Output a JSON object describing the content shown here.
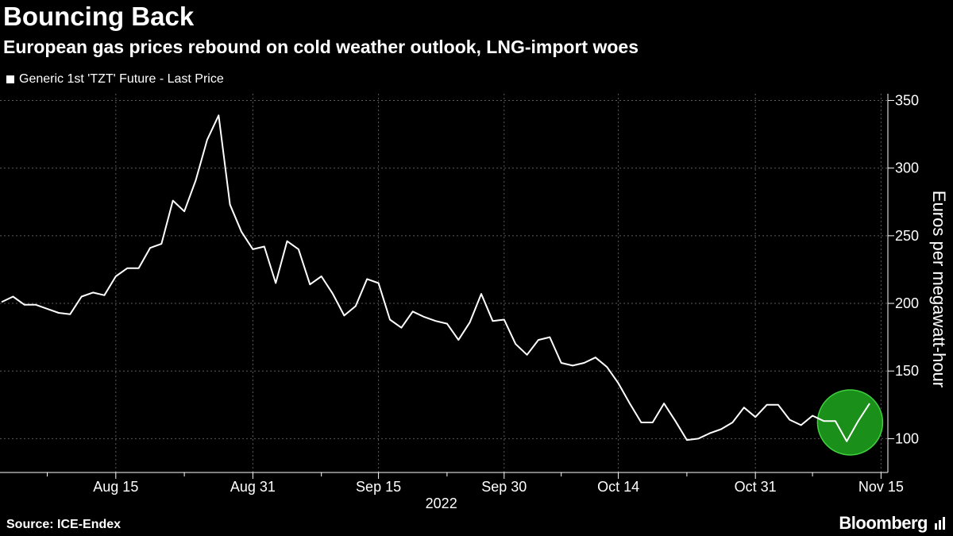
{
  "header": {
    "title": "Bouncing Back",
    "subtitle": "European gas prices rebound on cold weather outlook, LNG-import woes"
  },
  "legend": {
    "label": "Generic 1st 'TZT' Future - Last Price"
  },
  "footer": {
    "source": "Source: ICE-Endex",
    "brand": "Bloomberg"
  },
  "colors": {
    "background": "#000000",
    "line": "#ffffff",
    "grid": "#5a5a5a",
    "highlight": "#1a8f1a",
    "highlight_edge": "#3fd13f"
  },
  "chart_data": {
    "type": "line",
    "title": "Bouncing Back",
    "ylabel": "Euros per megawatt-hour",
    "xlabel": "2022",
    "ylim": [
      75,
      355
    ],
    "yticks": [
      100,
      150,
      200,
      250,
      300,
      350
    ],
    "xticks": [
      {
        "index": 10,
        "label": "Aug 15"
      },
      {
        "index": 22,
        "label": "Aug 31"
      },
      {
        "index": 33,
        "label": "Sep 15"
      },
      {
        "index": 44,
        "label": "Sep 30"
      },
      {
        "index": 54,
        "label": "Oct 14"
      },
      {
        "index": 66,
        "label": "Oct 31"
      },
      {
        "index": 77,
        "label": "Nov 15"
      }
    ],
    "minor_xticks": [
      4,
      16,
      28,
      39,
      49,
      60,
      71
    ],
    "series": [
      {
        "name": "Generic 1st 'TZT' Future - Last Price",
        "values": [
          201,
          205,
          199,
          199,
          196,
          193,
          192,
          205,
          208,
          206,
          220,
          226,
          226,
          241,
          244,
          276,
          268,
          291,
          321,
          339,
          273,
          253,
          240,
          242,
          215,
          246,
          240,
          214,
          220,
          207,
          191,
          198,
          218,
          215,
          188,
          182,
          194,
          190,
          187,
          185,
          173,
          186,
          207,
          187,
          188,
          170,
          162,
          173,
          175,
          156,
          154,
          156,
          160,
          153,
          141,
          126,
          112,
          112,
          126,
          113,
          99,
          100,
          104,
          107,
          112,
          123,
          116,
          125,
          125,
          114,
          110,
          117,
          113,
          113,
          98,
          113,
          126
        ]
      }
    ],
    "annotation": "green circle highlighting the final rebound"
  }
}
